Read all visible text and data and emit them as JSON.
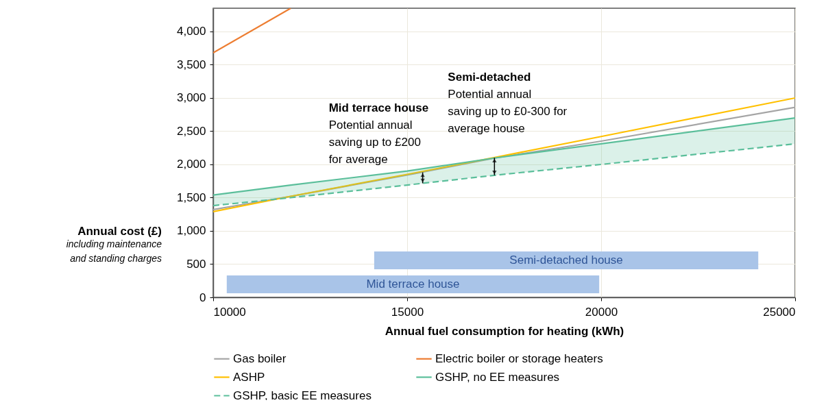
{
  "chart_data": {
    "type": "line",
    "xlabel": "Annual fuel consumption for heating (kWh)",
    "ylabel": "Annual cost (£)\nincluding maintenance\nand standing charges",
    "x": [
      10000,
      12000,
      15000,
      17300,
      20000,
      25000
    ],
    "series": [
      {
        "name": "Gas boiler",
        "color": "#a5a5a5",
        "values": [
          1320,
          1520,
          1840,
          2100,
          2350,
          2860
        ]
      },
      {
        "name": "Electric boiler or storage heaters",
        "color": "#ed7d31",
        "x": [
          10000,
          12000
        ],
        "values": [
          3680,
          4350
        ]
      },
      {
        "name": "ASHP",
        "color": "#ffc000",
        "values": [
          1290,
          1520,
          1850,
          2110,
          2420,
          3000
        ]
      },
      {
        "name": "GSHP, no EE measures",
        "color": "#5bbf9b",
        "values": [
          1540,
          1690,
          1900,
          2100,
          2310,
          2700
        ],
        "lower": [
          1380,
          1500,
          1690,
          1840,
          2000,
          2310
        ],
        "upper": [
          1540,
          1690,
          1900,
          2100,
          2310,
          2700
        ]
      },
      {
        "name": "GSHP, basic EE measures",
        "color": "#5bbf9b",
        "line_style": "dashed",
        "values": [
          1380,
          1500,
          1690,
          1840,
          2000,
          2310
        ]
      }
    ],
    "bands": [
      {
        "axis": "x",
        "from": 10350,
        "to": 19950,
        "label": "Mid terrace house",
        "color": "#a9c4e8"
      },
      {
        "axis": "x",
        "from": 14150,
        "to": 24050,
        "label": "Semi-detached house",
        "color": "#a9c4e8"
      }
    ],
    "annotations": [
      {
        "text": "Mid terrace house\nPotential annual\nsaving up to £200\nfor average",
        "x": 15400,
        "y": 1880
      },
      {
        "text": "Semi-detached\nPotential annual\nsaving up to £0-300 for\naverage house",
        "x": 17250,
        "y": 2100
      }
    ],
    "xlim": [
      10000,
      25000
    ],
    "xticks": [
      10000,
      15000,
      20000,
      25000
    ],
    "ylim": [
      0,
      4350
    ],
    "yticks": [
      0,
      500,
      {
        "value": 1000,
        "label": "1,000"
      },
      {
        "value": 1500,
        "label": "1,500"
      },
      {
        "value": 2000,
        "label": "2,000"
      },
      {
        "value": 2500,
        "label": "2,500"
      },
      {
        "value": 3000,
        "label": "3,000"
      },
      {
        "value": 3500,
        "label": "3,500"
      },
      {
        "value": 4000,
        "label": "4,000"
      }
    ],
    "grid": true,
    "legend": "bottom",
    "marker": "none",
    "line_style": "solid"
  }
}
